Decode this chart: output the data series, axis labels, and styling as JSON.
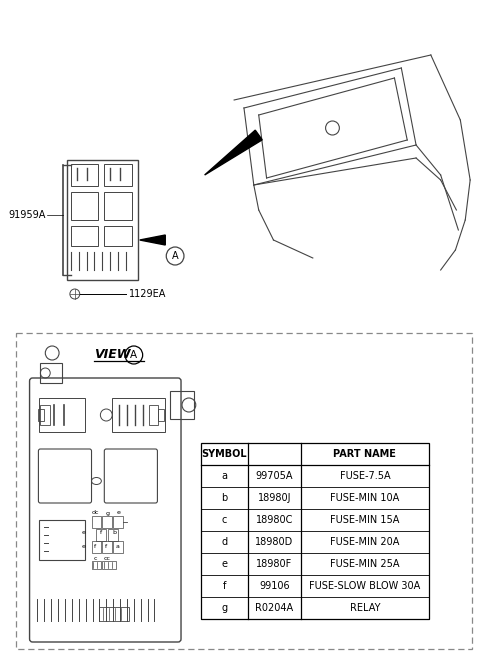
{
  "bg_color": "#ffffff",
  "table_headers": [
    "SYMBOL",
    "",
    "PART NAME"
  ],
  "table_rows": [
    [
      "a",
      "99705A",
      "FUSE-7.5A"
    ],
    [
      "b",
      "18980J",
      "FUSE-MIN 10A"
    ],
    [
      "c",
      "18980C",
      "FUSE-MIN 15A"
    ],
    [
      "d",
      "18980D",
      "FUSE-MIN 20A"
    ],
    [
      "e",
      "18980F",
      "FUSE-MIN 25A"
    ],
    [
      "f",
      "99106",
      "FUSE-SLOW BLOW 30A"
    ],
    [
      "g",
      "R0204A",
      "RELAY"
    ]
  ],
  "label_91959A": "91959A",
  "label_1129EA": "1129EA"
}
